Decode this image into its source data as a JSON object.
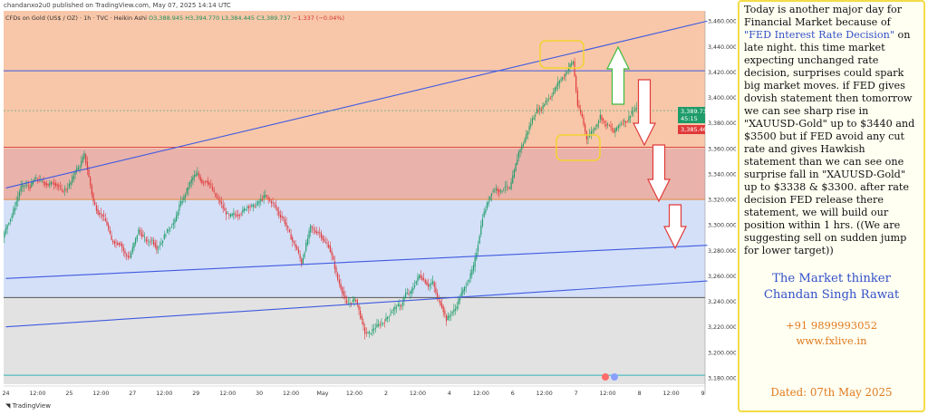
{
  "header": {
    "published": "chandanxo2u0 published on TradingView.com, May 07, 2025 14:14 UTC",
    "symbol_line": "CFDs on Gold (US$ / OZ) · 1h · TVC · Heikin Ashi",
    "o": "O3,388.945",
    "h": "H3,394.770",
    "l": "L3,384.445",
    "c": "C3,389.737",
    "chg": "−1.337 (−0.04%)"
  },
  "footer": {
    "brand": "TradingView"
  },
  "price_labels": {
    "last": "3,389.737",
    "countdown": "45:15",
    "red": "3,385.460"
  },
  "note": {
    "p1": "Today is another major day for Financial Market because of ",
    "p1_hl": "\"FED Interest Rate Decision\"",
    "p1_rest": " on late night. this time market expecting unchanged rate decision, surprises could spark big market moves. if FED gives dovish statement then tomorrow we can see sharp rise in \"XAUUSD-Gold\" up to $3440 and $3500 but if FED avoid any cut rate and gives Hawkish statement than we can see one surprise fall in \"XAUUSD-Gold\" up to $3338 & $3300. after rate decision FED release there statement, we will build our position within 1 hrs. ((We are suggesting sell on sudden jump for lower target))",
    "author1": "The Market thinker",
    "author2": "Chandan Singh Rawat",
    "phone": "+91 9899993052",
    "site": "www.fxlive.in",
    "date": "Dated: 07th May 2025"
  },
  "chart_data": {
    "type": "candlestick",
    "title": "CFDs on Gold (US$ / OZ) · 1h · TVC · Heikin Ashi",
    "ylim": [
      3175,
      3468
    ],
    "y_ticks": [
      "3,460.000",
      "3,440.000",
      "3,420.000",
      "3,400.000",
      "3,380.000",
      "3,360.000",
      "3,340.000",
      "3,320.000",
      "3,300.000",
      "3,280.000",
      "3,260.000",
      "3,240.000",
      "3,220.000",
      "3,200.000",
      "3,180.000"
    ],
    "y_tick_values": [
      3460,
      3440,
      3420,
      3400,
      3380,
      3360,
      3340,
      3320,
      3300,
      3280,
      3260,
      3240,
      3220,
      3200,
      3180
    ],
    "x_labels": [
      "24",
      "12:00",
      "25",
      "12:00",
      "27",
      "12:00",
      "29",
      "12:00",
      "30",
      "12:00",
      "May",
      "12:00",
      "2",
      "12:00",
      "4",
      "12:00",
      "6",
      "12:00",
      "7",
      "12:00",
      "8",
      "12:00",
      "9"
    ],
    "x_label_idx": [
      0,
      7,
      14,
      21,
      28,
      35,
      42,
      49,
      56,
      63,
      70,
      77,
      84,
      91,
      98,
      105,
      112,
      119,
      126,
      133,
      140,
      147,
      154
    ],
    "n_slots": 155,
    "path": [
      [
        0,
        3290
      ],
      [
        4,
        3330
      ],
      [
        8,
        3335
      ],
      [
        14,
        3328
      ],
      [
        18,
        3355
      ],
      [
        20,
        3320
      ],
      [
        24,
        3290
      ],
      [
        28,
        3275
      ],
      [
        30,
        3295
      ],
      [
        34,
        3282
      ],
      [
        38,
        3305
      ],
      [
        42,
        3340
      ],
      [
        46,
        3330
      ],
      [
        50,
        3305
      ],
      [
        54,
        3315
      ],
      [
        58,
        3322
      ],
      [
        62,
        3305
      ],
      [
        66,
        3270
      ],
      [
        68,
        3300
      ],
      [
        72,
        3285
      ],
      [
        74,
        3255
      ],
      [
        76,
        3235
      ],
      [
        78,
        3240
      ],
      [
        80,
        3215
      ],
      [
        84,
        3225
      ],
      [
        88,
        3238
      ],
      [
        92,
        3260
      ],
      [
        95,
        3252
      ],
      [
        98,
        3225
      ],
      [
        102,
        3248
      ],
      [
        104,
        3270
      ],
      [
        106,
        3305
      ],
      [
        108,
        3325
      ],
      [
        112,
        3330
      ],
      [
        114,
        3360
      ],
      [
        118,
        3388
      ],
      [
        122,
        3408
      ],
      [
        126,
        3430
      ],
      [
        127,
        3395
      ],
      [
        129,
        3370
      ],
      [
        132,
        3385
      ],
      [
        135,
        3375
      ],
      [
        140,
        3391
      ]
    ],
    "zones": [
      {
        "name": "upper",
        "from": 3360,
        "to": 3475,
        "color": "#f8c7a9"
      },
      {
        "name": "middle",
        "from": 3320,
        "to": 3360,
        "color": "#e9b2ab"
      },
      {
        "name": "lower",
        "from": 3243,
        "to": 3320,
        "color": "#d4e0f8"
      },
      {
        "name": "bottom",
        "from": 3175,
        "to": 3243,
        "color": "#e2e2e2"
      }
    ],
    "hlines": [
      {
        "y": 3421,
        "color": "#3f5ae0"
      },
      {
        "y": 3361,
        "color": "#d44"
      },
      {
        "y": 3320,
        "color": "#e88a3c"
      },
      {
        "y": 3243,
        "color": "#555"
      },
      {
        "y": 3182,
        "color": "#2fb5b5"
      }
    ],
    "trendlines": [
      {
        "from": [
          0,
          3329
        ],
        "to": [
          155,
          3460
        ]
      },
      {
        "from": [
          0,
          3258
        ],
        "to": [
          155,
          3284
        ]
      },
      {
        "from": [
          0,
          3220
        ],
        "to": [
          155,
          3256
        ]
      }
    ],
    "last_price": 3389.737,
    "red_price": 3385.46,
    "colors": {
      "up": "#1e9c6a",
      "down": "#e0393a"
    }
  }
}
